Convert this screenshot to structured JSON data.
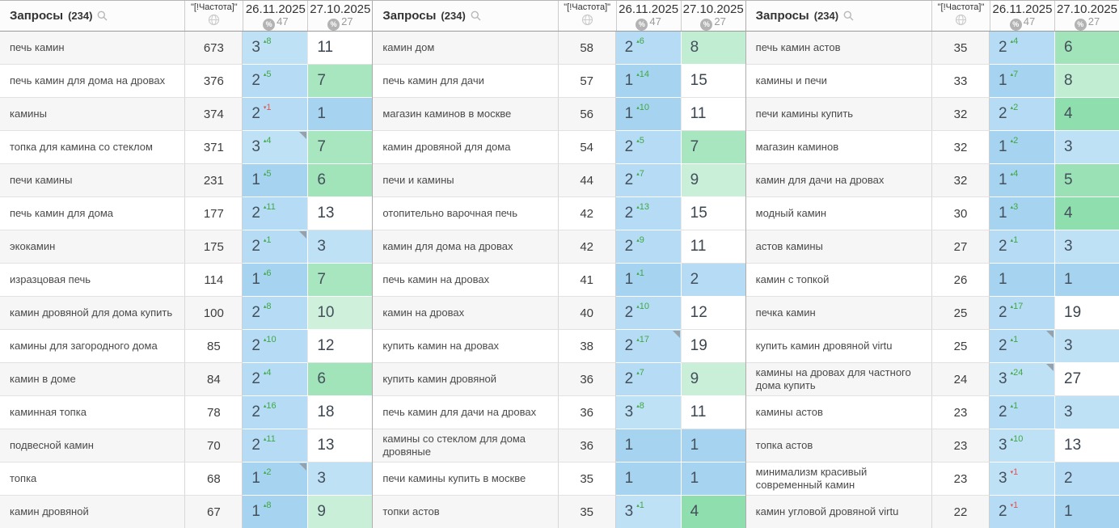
{
  "header": {
    "queries_label": "Запросы",
    "queries_count": "(234)",
    "freq_label": "\"[!Частота]\"",
    "date1": "26.11.2025",
    "date1_badge": "47",
    "date2": "27.10.2025",
    "date2_badge": "27",
    "percent_symbol": "%"
  },
  "colors": {
    "pos_bg": {
      "1": "#a6d4f0",
      "2": "#b5dcf4",
      "3": "#bfe1f5",
      "4": "#8fdead",
      "5": "#9ae2b5",
      "6": "#a1e4ba",
      "7": "#a8e6bf",
      "8": "#c1edd2",
      "9": "#c9efd8",
      "10": "#cff1dc",
      "default": "#ffffff"
    },
    "delta_up": "#3fa845",
    "delta_down": "#e25555"
  },
  "groups": [
    {
      "rows": [
        {
          "query": "печь камин",
          "freq": "673",
          "pos": 3,
          "delta": 8,
          "note": false,
          "prev": 11
        },
        {
          "query": "печь камин для дома на дровах",
          "freq": "376",
          "pos": 2,
          "delta": 5,
          "note": false,
          "prev": 7
        },
        {
          "query": "камины",
          "freq": "374",
          "pos": 2,
          "delta": -1,
          "note": false,
          "prev": 1
        },
        {
          "query": "топка для камина со стеклом",
          "freq": "371",
          "pos": 3,
          "delta": 4,
          "note": true,
          "prev": 7
        },
        {
          "query": "печи камины",
          "freq": "231",
          "pos": 1,
          "delta": 5,
          "note": false,
          "prev": 6
        },
        {
          "query": "печь камин для дома",
          "freq": "177",
          "pos": 2,
          "delta": 11,
          "note": false,
          "prev": 13
        },
        {
          "query": "экокамин",
          "freq": "175",
          "pos": 2,
          "delta": 1,
          "note": true,
          "prev": 3
        },
        {
          "query": "изразцовая печь",
          "freq": "114",
          "pos": 1,
          "delta": 6,
          "note": false,
          "prev": 7
        },
        {
          "query": "камин дровяной для дома купить",
          "freq": "100",
          "pos": 2,
          "delta": 8,
          "note": false,
          "prev": 10
        },
        {
          "query": "камины для загородного дома",
          "freq": "85",
          "pos": 2,
          "delta": 10,
          "note": false,
          "prev": 12
        },
        {
          "query": "камин в доме",
          "freq": "84",
          "pos": 2,
          "delta": 4,
          "note": false,
          "prev": 6
        },
        {
          "query": "каминная топка",
          "freq": "78",
          "pos": 2,
          "delta": 16,
          "note": false,
          "prev": 18
        },
        {
          "query": "подвесной камин",
          "freq": "70",
          "pos": 2,
          "delta": 11,
          "note": false,
          "prev": 13
        },
        {
          "query": "топка",
          "freq": "68",
          "pos": 1,
          "delta": 2,
          "note": true,
          "prev": 3
        },
        {
          "query": "камин дровяной",
          "freq": "67",
          "pos": 1,
          "delta": 8,
          "note": false,
          "prev": 9
        }
      ]
    },
    {
      "rows": [
        {
          "query": "камин дом",
          "freq": "58",
          "pos": 2,
          "delta": 6,
          "note": false,
          "prev": 8
        },
        {
          "query": "печь камин для дачи",
          "freq": "57",
          "pos": 1,
          "delta": 14,
          "note": false,
          "prev": 15
        },
        {
          "query": "магазин каминов в москве",
          "freq": "56",
          "pos": 1,
          "delta": 10,
          "note": false,
          "prev": 11
        },
        {
          "query": "камин дровяной для дома",
          "freq": "54",
          "pos": 2,
          "delta": 5,
          "note": false,
          "prev": 7
        },
        {
          "query": "печи и камины",
          "freq": "44",
          "pos": 2,
          "delta": 7,
          "note": false,
          "prev": 9
        },
        {
          "query": "отопительно варочная печь",
          "freq": "42",
          "pos": 2,
          "delta": 13,
          "note": false,
          "prev": 15
        },
        {
          "query": "камин для дома на дровах",
          "freq": "42",
          "pos": 2,
          "delta": 9,
          "note": false,
          "prev": 11
        },
        {
          "query": "печь камин на дровах",
          "freq": "41",
          "pos": 1,
          "delta": 1,
          "note": false,
          "prev": 2
        },
        {
          "query": "камин на дровах",
          "freq": "40",
          "pos": 2,
          "delta": 10,
          "note": false,
          "prev": 12
        },
        {
          "query": "купить камин на дровах",
          "freq": "38",
          "pos": 2,
          "delta": 17,
          "note": true,
          "prev": 19
        },
        {
          "query": "купить камин дровяной",
          "freq": "36",
          "pos": 2,
          "delta": 7,
          "note": false,
          "prev": 9
        },
        {
          "query": "печь камин для дачи на дровах",
          "freq": "36",
          "pos": 3,
          "delta": 8,
          "note": false,
          "prev": 11
        },
        {
          "query": "камины со стеклом для дома дровяные",
          "freq": "36",
          "pos": 1,
          "delta": null,
          "note": false,
          "prev": 1
        },
        {
          "query": "печи камины купить в москве",
          "freq": "35",
          "pos": 1,
          "delta": null,
          "note": false,
          "prev": 1
        },
        {
          "query": "топки астов",
          "freq": "35",
          "pos": 3,
          "delta": 1,
          "note": false,
          "prev": 4
        }
      ]
    },
    {
      "rows": [
        {
          "query": "печь камин астов",
          "freq": "35",
          "pos": 2,
          "delta": 4,
          "note": false,
          "prev": 6
        },
        {
          "query": "камины и печи",
          "freq": "33",
          "pos": 1,
          "delta": 7,
          "note": false,
          "prev": 8
        },
        {
          "query": "печи камины купить",
          "freq": "32",
          "pos": 2,
          "delta": 2,
          "note": false,
          "prev": 4
        },
        {
          "query": "магазин каминов",
          "freq": "32",
          "pos": 1,
          "delta": 2,
          "note": false,
          "prev": 3
        },
        {
          "query": "камин для дачи на дровах",
          "freq": "32",
          "pos": 1,
          "delta": 4,
          "note": false,
          "prev": 5
        },
        {
          "query": "модный камин",
          "freq": "30",
          "pos": 1,
          "delta": 3,
          "note": false,
          "prev": 4
        },
        {
          "query": "астов камины",
          "freq": "27",
          "pos": 2,
          "delta": 1,
          "note": false,
          "prev": 3
        },
        {
          "query": "камин с топкой",
          "freq": "26",
          "pos": 1,
          "delta": null,
          "note": false,
          "prev": 1
        },
        {
          "query": "печка камин",
          "freq": "25",
          "pos": 2,
          "delta": 17,
          "note": false,
          "prev": 19
        },
        {
          "query": "купить камин дровяной virtu",
          "freq": "25",
          "pos": 2,
          "delta": 1,
          "note": true,
          "prev": 3
        },
        {
          "query": "камины на дровах для частного дома купить",
          "freq": "24",
          "pos": 3,
          "delta": 24,
          "note": true,
          "prev": 27
        },
        {
          "query": "камины астов",
          "freq": "23",
          "pos": 2,
          "delta": 1,
          "note": false,
          "prev": 3
        },
        {
          "query": "топка астов",
          "freq": "23",
          "pos": 3,
          "delta": 10,
          "note": false,
          "prev": 13
        },
        {
          "query": "минимализм красивый современный камин",
          "freq": "23",
          "pos": 3,
          "delta": -1,
          "note": false,
          "prev": 2
        },
        {
          "query": "камин угловой дровяной virtu",
          "freq": "22",
          "pos": 2,
          "delta": -1,
          "note": false,
          "prev": 1
        }
      ]
    }
  ]
}
